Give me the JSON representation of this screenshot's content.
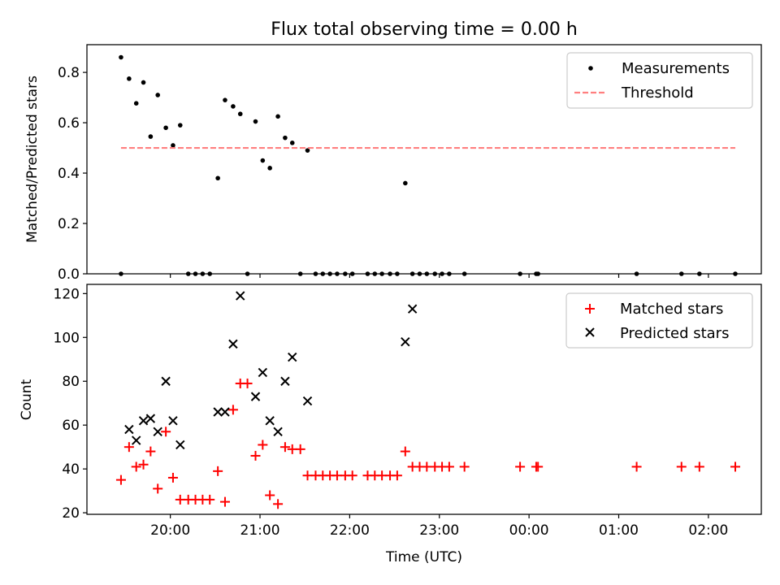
{
  "figure": {
    "title": "Flux total observing time = 0.00 h"
  },
  "chart_data": [
    {
      "type": "scatter",
      "panel": "top",
      "ylabel": "Matched/Predicted stars",
      "ylim": [
        0,
        0.91
      ],
      "yticks": [
        0.0,
        0.2,
        0.4,
        0.6,
        0.8
      ],
      "ytick_labels": [
        "0.0",
        "0.2",
        "0.4",
        "0.6",
        "0.8"
      ],
      "xlim": [
        19.07,
        26.59
      ],
      "grid": false,
      "legend_position": "top-right",
      "series": [
        {
          "name": "Measurements",
          "marker": "dot",
          "color": "#000000",
          "x": [
            19.45,
            19.54,
            19.62,
            19.7,
            19.78,
            19.86,
            19.95,
            20.03,
            20.11,
            20.53,
            20.61,
            20.7,
            20.78,
            20.95,
            21.03,
            21.11,
            21.2,
            21.28,
            21.36,
            21.53,
            22.62,
            22.7,
            19.45,
            20.2,
            20.28,
            20.36,
            20.44,
            20.86,
            21.45,
            21.62,
            21.7,
            21.78,
            21.86,
            21.95,
            22.03,
            22.2,
            22.28,
            22.36,
            22.45,
            22.53,
            22.78,
            22.86,
            22.95,
            23.03,
            23.11,
            23.28,
            23.9,
            24.08,
            24.1,
            25.2,
            25.7,
            25.9,
            26.3
          ],
          "y": [
            0.86,
            0.775,
            0.677,
            0.76,
            0.545,
            0.71,
            0.58,
            0.51,
            0.59,
            0.38,
            0.69,
            0.665,
            0.635,
            0.605,
            0.45,
            0.42,
            0.625,
            0.54,
            0.52,
            0.49,
            0.36,
            0,
            0,
            0,
            0,
            0,
            0,
            0,
            0,
            0,
            0,
            0,
            0,
            0,
            0,
            0,
            0,
            0,
            0,
            0,
            0,
            0,
            0,
            0,
            0,
            0,
            0,
            0,
            0,
            0,
            0,
            0,
            0
          ]
        },
        {
          "name": "Threshold",
          "style": "dashed",
          "color": "#ff7f7f",
          "x": [
            19.45,
            26.3
          ],
          "y": [
            0.5,
            0.5
          ]
        }
      ]
    },
    {
      "type": "scatter",
      "panel": "bottom",
      "xlabel": "Time (UTC)",
      "ylabel": "Count",
      "ylim": [
        19.3,
        124.2
      ],
      "yticks": [
        20,
        40,
        60,
        80,
        100,
        120
      ],
      "ytick_labels": [
        "20",
        "40",
        "60",
        "80",
        "100",
        "120"
      ],
      "xlim": [
        19.07,
        26.59
      ],
      "xticks": [
        20,
        21,
        22,
        23,
        24,
        25,
        26
      ],
      "xtick_labels": [
        "20:00",
        "21:00",
        "22:00",
        "23:00",
        "00:00",
        "01:00",
        "02:00"
      ],
      "grid": false,
      "legend_position": "top-right",
      "series": [
        {
          "name": "Matched stars",
          "marker": "plus",
          "color": "#ff0000",
          "x": [
            19.45,
            19.54,
            19.62,
            19.7,
            19.78,
            19.86,
            19.95,
            20.03,
            20.11,
            20.2,
            20.28,
            20.36,
            20.44,
            20.53,
            20.61,
            20.7,
            20.78,
            20.86,
            20.95,
            21.03,
            21.11,
            21.2,
            21.28,
            21.36,
            21.45,
            21.53,
            21.62,
            21.7,
            21.78,
            21.86,
            21.95,
            22.03,
            22.2,
            22.28,
            22.36,
            22.45,
            22.53,
            22.62,
            22.7,
            22.78,
            22.86,
            22.95,
            23.03,
            23.11,
            23.28,
            23.9,
            24.08,
            24.1,
            25.2,
            25.7,
            25.9,
            26.3
          ],
          "y": [
            35,
            50,
            41,
            42,
            48,
            31,
            57,
            36,
            26,
            26,
            26,
            26,
            26,
            39,
            25,
            67,
            79,
            79,
            46,
            51,
            28,
            24,
            50,
            49,
            49,
            37,
            37,
            37,
            37,
            37,
            37,
            37,
            37,
            37,
            37,
            37,
            37,
            48,
            41,
            41,
            41,
            41,
            41,
            41,
            41,
            41,
            41,
            41,
            41,
            41,
            41,
            41
          ]
        },
        {
          "name": "Predicted stars",
          "marker": "x",
          "color": "#000000",
          "x": [
            19.54,
            19.62,
            19.7,
            19.78,
            19.86,
            19.95,
            20.03,
            20.11,
            20.53,
            20.61,
            20.7,
            20.78,
            20.95,
            21.03,
            21.11,
            21.2,
            21.28,
            21.36,
            21.53,
            22.62,
            22.7
          ],
          "y": [
            58,
            53,
            62,
            63,
            57,
            80,
            62,
            51,
            66,
            66,
            97,
            119,
            73,
            84,
            62,
            57,
            80,
            91,
            71,
            98,
            113
          ]
        }
      ]
    }
  ]
}
